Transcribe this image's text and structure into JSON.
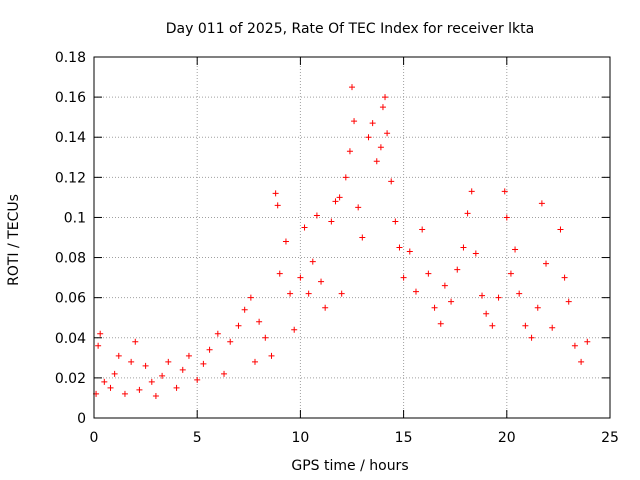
{
  "chart_data": {
    "type": "scatter",
    "title": "Day 011 of 2025, Rate Of TEC Index for receiver lkta",
    "xlabel": "GPS time / hours",
    "ylabel": "ROTI / TECUs",
    "xlim": [
      0,
      25
    ],
    "ylim": [
      0,
      0.18
    ],
    "x_ticks": [
      "0",
      "5",
      "10",
      "15",
      "20",
      "25"
    ],
    "y_ticks": [
      "0",
      "0.02",
      "0.04",
      "0.06",
      "0.08",
      "0.1",
      "0.12",
      "0.14",
      "0.16",
      "0.18"
    ],
    "x_tick_values": [
      0,
      5,
      10,
      15,
      20,
      25
    ],
    "y_tick_values": [
      0,
      0.02,
      0.04,
      0.06,
      0.08,
      0.1,
      0.12,
      0.14,
      0.16,
      0.18
    ],
    "grid": true,
    "marker": "+",
    "marker_color": "#ff0000",
    "series": [
      {
        "points": [
          [
            0.1,
            0.012
          ],
          [
            0.2,
            0.036
          ],
          [
            0.3,
            0.042
          ],
          [
            0.5,
            0.018
          ],
          [
            0.8,
            0.015
          ],
          [
            1.0,
            0.022
          ],
          [
            1.2,
            0.031
          ],
          [
            1.5,
            0.012
          ],
          [
            1.8,
            0.028
          ],
          [
            2.0,
            0.038
          ],
          [
            2.2,
            0.014
          ],
          [
            2.5,
            0.026
          ],
          [
            2.8,
            0.018
          ],
          [
            3.0,
            0.011
          ],
          [
            3.3,
            0.021
          ],
          [
            3.6,
            0.028
          ],
          [
            4.0,
            0.015
          ],
          [
            4.3,
            0.024
          ],
          [
            4.6,
            0.031
          ],
          [
            5.0,
            0.019
          ],
          [
            5.3,
            0.027
          ],
          [
            5.6,
            0.034
          ],
          [
            6.0,
            0.042
          ],
          [
            6.3,
            0.022
          ],
          [
            6.6,
            0.038
          ],
          [
            7.0,
            0.046
          ],
          [
            7.3,
            0.054
          ],
          [
            7.6,
            0.06
          ],
          [
            7.8,
            0.028
          ],
          [
            8.0,
            0.048
          ],
          [
            8.3,
            0.04
          ],
          [
            8.6,
            0.031
          ],
          [
            8.8,
            0.112
          ],
          [
            8.9,
            0.106
          ],
          [
            9.0,
            0.072
          ],
          [
            9.3,
            0.088
          ],
          [
            9.5,
            0.062
          ],
          [
            9.7,
            0.044
          ],
          [
            10.0,
            0.07
          ],
          [
            10.2,
            0.095
          ],
          [
            10.4,
            0.062
          ],
          [
            10.6,
            0.078
          ],
          [
            10.8,
            0.101
          ],
          [
            11.0,
            0.068
          ],
          [
            11.2,
            0.055
          ],
          [
            11.5,
            0.098
          ],
          [
            11.7,
            0.108
          ],
          [
            11.9,
            0.11
          ],
          [
            12.0,
            0.062
          ],
          [
            12.2,
            0.12
          ],
          [
            12.4,
            0.133
          ],
          [
            12.5,
            0.165
          ],
          [
            12.6,
            0.148
          ],
          [
            12.8,
            0.105
          ],
          [
            13.0,
            0.09
          ],
          [
            13.3,
            0.14
          ],
          [
            13.5,
            0.147
          ],
          [
            13.7,
            0.128
          ],
          [
            13.9,
            0.135
          ],
          [
            14.0,
            0.155
          ],
          [
            14.1,
            0.16
          ],
          [
            14.2,
            0.142
          ],
          [
            14.4,
            0.118
          ],
          [
            14.6,
            0.098
          ],
          [
            14.8,
            0.085
          ],
          [
            15.0,
            0.07
          ],
          [
            15.3,
            0.083
          ],
          [
            15.6,
            0.063
          ],
          [
            15.9,
            0.094
          ],
          [
            16.2,
            0.072
          ],
          [
            16.5,
            0.055
          ],
          [
            16.8,
            0.047
          ],
          [
            17.0,
            0.066
          ],
          [
            17.3,
            0.058
          ],
          [
            17.6,
            0.074
          ],
          [
            17.9,
            0.085
          ],
          [
            18.1,
            0.102
          ],
          [
            18.3,
            0.113
          ],
          [
            18.5,
            0.082
          ],
          [
            18.8,
            0.061
          ],
          [
            19.0,
            0.052
          ],
          [
            19.3,
            0.046
          ],
          [
            19.6,
            0.06
          ],
          [
            19.9,
            0.113
          ],
          [
            20.0,
            0.1
          ],
          [
            20.2,
            0.072
          ],
          [
            20.4,
            0.084
          ],
          [
            20.6,
            0.062
          ],
          [
            20.9,
            0.046
          ],
          [
            21.2,
            0.04
          ],
          [
            21.5,
            0.055
          ],
          [
            21.7,
            0.107
          ],
          [
            21.9,
            0.077
          ],
          [
            22.2,
            0.045
          ],
          [
            22.6,
            0.094
          ],
          [
            22.8,
            0.07
          ],
          [
            23.0,
            0.058
          ],
          [
            23.3,
            0.036
          ],
          [
            23.6,
            0.028
          ],
          [
            23.9,
            0.038
          ]
        ]
      }
    ]
  }
}
